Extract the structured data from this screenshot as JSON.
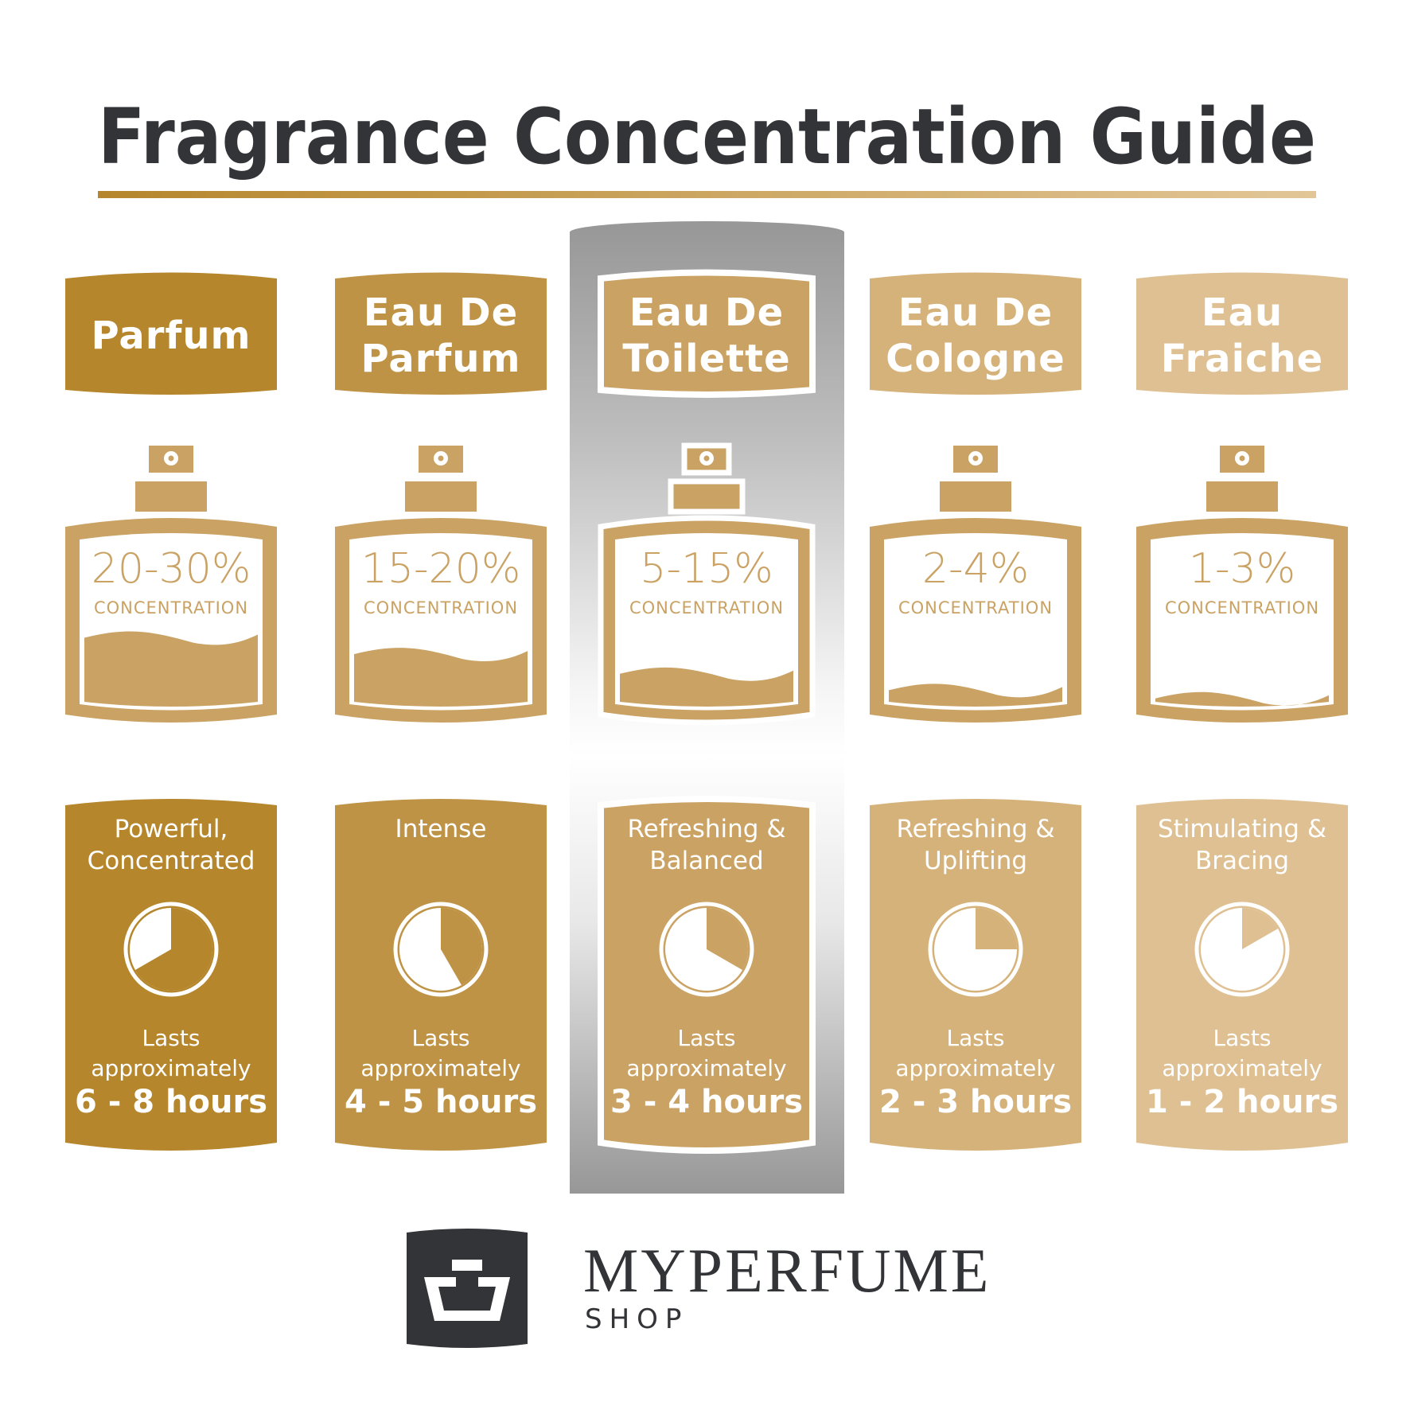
{
  "title": "Fragrance Concentration Guide",
  "colors": {
    "title": "#333438",
    "bottle": "#c9a264",
    "highlight_panel": "#979797"
  },
  "highlighted_column": 2,
  "columns": [
    {
      "name": "Parfum",
      "color": "#b5862b",
      "concentration": "20-30%",
      "concentration_label": "CONCENTRATION",
      "fill_level": 0.42,
      "description": "Powerful,\nConcentrated",
      "lasts_label": "Lasts",
      "approx_label": "approximately",
      "duration": "6 - 8 hours",
      "clock_hours": 8
    },
    {
      "name": "Eau De\nParfum",
      "color": "#bf9345",
      "concentration": "15-20%",
      "concentration_label": "CONCENTRATION",
      "fill_level": 0.32,
      "description": "Intense",
      "lasts_label": "Lasts",
      "approx_label": "approximately",
      "duration": "4 - 5 hours",
      "clock_hours": 5
    },
    {
      "name": "Eau De\nToilette",
      "color": "#caa263",
      "concentration": "5-15%",
      "concentration_label": "CONCENTRATION",
      "fill_level": 0.2,
      "description": "Refreshing &\nBalanced",
      "lasts_label": "Lasts",
      "approx_label": "approximately",
      "duration": "3 - 4 hours",
      "clock_hours": 4
    },
    {
      "name": "Eau De\nCologne",
      "color": "#d6b27b",
      "concentration": "2-4%",
      "concentration_label": "CONCENTRATION",
      "fill_level": 0.1,
      "description": "Refreshing &\nUplifting",
      "lasts_label": "Lasts",
      "approx_label": "approximately",
      "duration": "2 - 3 hours",
      "clock_hours": 3
    },
    {
      "name": "Eau\nFraiche",
      "color": "#dfc092",
      "concentration": "1-3%",
      "concentration_label": "CONCENTRATION",
      "fill_level": 0.05,
      "description": "Stimulating &\nBracing",
      "lasts_label": "Lasts",
      "approx_label": "approximately",
      "duration": "1 - 2 hours",
      "clock_hours": 2
    }
  ],
  "brand": {
    "name": "MYPERFUME",
    "sub": "SHOP",
    "logo_color": "#333438"
  }
}
